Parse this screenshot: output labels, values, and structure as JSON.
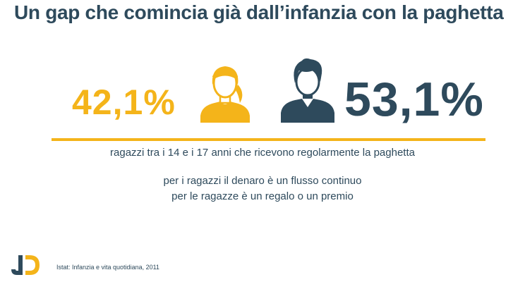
{
  "title": "Un gap che comincia già dall’infanzia con la paghetta",
  "stats": {
    "female_value": "42,1%",
    "male_value": "53,1%"
  },
  "icons": {
    "female": "girl-avatar-icon",
    "male": "boy-avatar-icon",
    "logo": "brand-logo-icon"
  },
  "caption": "ragazzi tra i 14 e i 17 anni che ricevono regolarmente la paghetta",
  "note": {
    "line1": "per i ragazzi il denaro è un flusso continuo",
    "line2": "per le ragazze è un regalo o un premio"
  },
  "source": "Istat: Infanzia e vita quotidiana,  2011",
  "colors": {
    "accent": "#f4b41a",
    "primary": "#2e4a5c"
  }
}
